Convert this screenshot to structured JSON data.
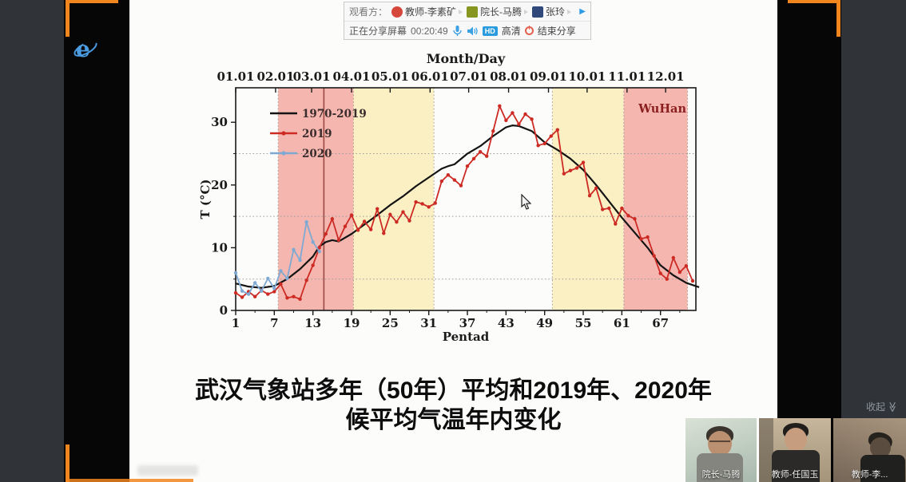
{
  "window": {
    "collapse_label": "收起",
    "collapse_icon": "≫"
  },
  "toolbar": {
    "viewers_label": "观看方：",
    "viewers": [
      {
        "name": "教师-李素矿",
        "color": "#d6473b"
      },
      {
        "name": "院长-马腾",
        "color": "#86961e"
      },
      {
        "name": "张玲",
        "color": "#31497a"
      }
    ],
    "more_icon": "▶",
    "sharing_status": "正在分享屏幕",
    "timer": "00:20:49",
    "hd_badge": "HD",
    "hd_label": "高清",
    "end_share_label": "结束分享"
  },
  "slide": {
    "caption_line1": "武汉气象站多年（50年）平均和2019年、2020年",
    "caption_line2": "候平均气温年内变化"
  },
  "participants": [
    {
      "name": "院长-马腾"
    },
    {
      "name": "教师-任国玉"
    },
    {
      "name": "教师-李..."
    }
  ],
  "chart_data": {
    "type": "line",
    "title": "Month/Day",
    "xlabel": "Pentad",
    "ylabel": "T (°C)",
    "station_label": "WuHan",
    "xlim": [
      1,
      72.5
    ],
    "ylim": [
      0,
      35.5
    ],
    "grid": "dotted",
    "x_ticks_bottom": [
      1,
      7,
      13,
      19,
      25,
      31,
      37,
      43,
      49,
      55,
      61,
      67
    ],
    "y_ticks": [
      0,
      10,
      20,
      30
    ],
    "grid_y_dotted": [
      5,
      15,
      25
    ],
    "month_ticks": {
      "labels": [
        "01.01",
        "02.01",
        "03.01",
        "04.01",
        "05.01",
        "06.01",
        "07.01",
        "08.01",
        "09.01",
        "10.01",
        "11.01",
        "12.01"
      ],
      "pentads": [
        1,
        7.2,
        12.8,
        19,
        25,
        31.2,
        37.2,
        43.4,
        49.6,
        55.6,
        61.8,
        67.8
      ]
    },
    "bands": [
      {
        "from": 7.6,
        "to": 19.3,
        "color": "#f5b6af"
      },
      {
        "from": 19.3,
        "to": 31.8,
        "color": "#fbf0c4"
      },
      {
        "from": 50.2,
        "to": 61.3,
        "color": "#fbf0c4"
      },
      {
        "from": 61.3,
        "to": 71.2,
        "color": "#f5b6af"
      }
    ],
    "band_edges": [
      7.6,
      19.3,
      31.8,
      50.2,
      61.3,
      71.2
    ],
    "vline": {
      "pentad": 14.7,
      "color": "#9a4a42"
    },
    "legend": [
      {
        "label": "1970-2019",
        "color": "#141414",
        "markers": false
      },
      {
        "label": "2019",
        "color": "#cd2a24",
        "markers": true
      },
      {
        "label": "2020",
        "color": "#7ea9d2",
        "markers": true
      }
    ],
    "legend_position": "upper-left",
    "series": [
      {
        "name": "1970-2019",
        "color": "#141414",
        "width": 2.2,
        "markers": false,
        "points": [
          [
            1,
            4.3
          ],
          [
            3,
            3.8
          ],
          [
            5,
            3.6
          ],
          [
            7,
            3.9
          ],
          [
            9,
            5.0
          ],
          [
            11,
            6.6
          ],
          [
            13,
            8.6
          ],
          [
            14,
            10.2
          ],
          [
            15,
            10.9
          ],
          [
            16,
            11.2
          ],
          [
            17,
            11.0
          ],
          [
            19,
            12.2
          ],
          [
            21,
            13.7
          ],
          [
            23,
            15.2
          ],
          [
            25,
            16.8
          ],
          [
            27,
            18.2
          ],
          [
            29,
            19.8
          ],
          [
            31,
            21.2
          ],
          [
            33,
            22.6
          ],
          [
            34,
            23.0
          ],
          [
            35,
            23.3
          ],
          [
            37,
            25.0
          ],
          [
            39,
            26.2
          ],
          [
            41,
            27.8
          ],
          [
            43,
            29.2
          ],
          [
            44,
            29.5
          ],
          [
            45,
            29.4
          ],
          [
            47,
            28.6
          ],
          [
            49,
            26.8
          ],
          [
            51,
            25.6
          ],
          [
            53,
            24.2
          ],
          [
            55,
            22.4
          ],
          [
            57,
            20.0
          ],
          [
            59,
            17.4
          ],
          [
            61,
            14.8
          ],
          [
            63,
            12.4
          ],
          [
            65,
            10.0
          ],
          [
            67,
            7.2
          ],
          [
            69,
            5.6
          ],
          [
            71,
            4.4
          ],
          [
            73,
            3.7
          ]
        ]
      },
      {
        "name": "2019",
        "color": "#cd2a24",
        "width": 1.8,
        "markers": true,
        "points": [
          [
            1,
            2.8
          ],
          [
            2,
            2.1
          ],
          [
            3,
            3.0
          ],
          [
            4,
            2.2
          ],
          [
            5,
            3.2
          ],
          [
            6,
            2.6
          ],
          [
            7,
            3.0
          ],
          [
            8,
            4.2
          ],
          [
            9,
            2.0
          ],
          [
            10,
            2.2
          ],
          [
            11,
            1.8
          ],
          [
            12,
            4.8
          ],
          [
            13,
            7.2
          ],
          [
            14,
            10.0
          ],
          [
            15,
            12.2
          ],
          [
            16,
            14.6
          ],
          [
            17,
            11.2
          ],
          [
            18,
            13.4
          ],
          [
            19,
            15.2
          ],
          [
            20,
            12.8
          ],
          [
            21,
            14.2
          ],
          [
            22,
            12.9
          ],
          [
            23,
            16.2
          ],
          [
            24,
            12.3
          ],
          [
            25,
            15.3
          ],
          [
            26,
            14.1
          ],
          [
            27,
            15.7
          ],
          [
            28,
            14.3
          ],
          [
            29,
            17.3
          ],
          [
            30,
            17.0
          ],
          [
            31,
            16.5
          ],
          [
            32,
            17.1
          ],
          [
            33,
            20.6
          ],
          [
            34,
            21.6
          ],
          [
            35,
            20.8
          ],
          [
            36,
            19.9
          ],
          [
            37,
            23.0
          ],
          [
            38,
            24.2
          ],
          [
            39,
            25.3
          ],
          [
            40,
            24.6
          ],
          [
            41,
            28.6
          ],
          [
            42,
            32.6
          ],
          [
            43,
            30.3
          ],
          [
            44,
            31.5
          ],
          [
            45,
            29.7
          ],
          [
            46,
            31.3
          ],
          [
            47,
            30.5
          ],
          [
            48,
            26.3
          ],
          [
            49,
            26.6
          ],
          [
            50,
            27.8
          ],
          [
            51,
            28.8
          ],
          [
            52,
            21.8
          ],
          [
            53,
            22.3
          ],
          [
            54,
            22.7
          ],
          [
            55,
            23.6
          ],
          [
            56,
            18.3
          ],
          [
            57,
            19.5
          ],
          [
            58,
            16.1
          ],
          [
            59,
            16.3
          ],
          [
            60,
            13.8
          ],
          [
            61,
            16.3
          ],
          [
            62,
            15.1
          ],
          [
            63,
            14.6
          ],
          [
            64,
            11.4
          ],
          [
            65,
            11.7
          ],
          [
            66,
            8.7
          ],
          [
            67,
            5.9
          ],
          [
            68,
            5.0
          ],
          [
            69,
            8.4
          ],
          [
            70,
            6.1
          ],
          [
            71,
            7.1
          ],
          [
            72,
            4.7
          ]
        ]
      },
      {
        "name": "2020",
        "color": "#7ea9d2",
        "width": 1.8,
        "markers": true,
        "points": [
          [
            1,
            6.0
          ],
          [
            2,
            3.1
          ],
          [
            3,
            2.6
          ],
          [
            4,
            4.4
          ],
          [
            5,
            3.1
          ],
          [
            6,
            5.1
          ],
          [
            7,
            3.5
          ],
          [
            8,
            6.3
          ],
          [
            9,
            5.1
          ],
          [
            10,
            9.7
          ],
          [
            11,
            8.0
          ],
          [
            12,
            14.1
          ],
          [
            13,
            10.9
          ],
          [
            14,
            9.4
          ]
        ]
      }
    ]
  }
}
